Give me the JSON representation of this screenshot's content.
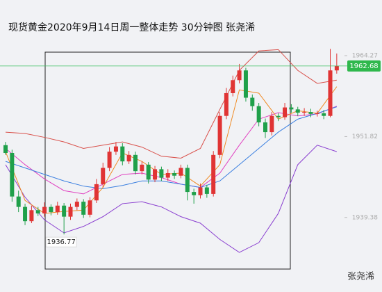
{
  "chart_data": {
    "type": "candlestick",
    "title": "现货黄金2020年9月14日周一整体走势 30分钟图 张尧浠",
    "watermark": "张尧浠",
    "up_color": "#e03434",
    "down_color": "#1fa04a",
    "ylim": [
      1927.91,
      1972.83
    ],
    "yticks": [
      1939.38,
      1951.82,
      1964.27
    ],
    "open": [
      1950.5,
      1949.3,
      1942.6,
      1941.0,
      1938.8,
      1940.5,
      1940.0,
      1941.0,
      1940.2,
      1941.2,
      1939.5,
      1941.0,
      1941.8,
      1939.8,
      1942.0,
      1944.5,
      1947.0,
      1949.5,
      1950.3,
      1948.0,
      1949.0,
      1946.5,
      1947.5,
      1945.2,
      1946.8,
      1945.5,
      1946.2,
      1945.8,
      1947.0,
      1943.3,
      1942.8,
      1944.0,
      1943.0,
      1949.0,
      1955.0,
      1958.5,
      1960.5,
      1962.0,
      1957.8,
      1956.5,
      1954.0,
      1952.5,
      1955.0,
      1954.8,
      1956.3,
      1956.0,
      1955.5,
      1955.6,
      1955.3,
      1955.4,
      1955.0,
      1962.0
    ],
    "high": [
      1951.0,
      1949.8,
      1943.5,
      1941.5,
      1941.2,
      1941.0,
      1941.7,
      1941.4,
      1941.8,
      1941.6,
      1941.5,
      1942.3,
      1942.2,
      1942.5,
      1945.3,
      1947.8,
      1950.2,
      1951.0,
      1950.8,
      1949.6,
      1949.5,
      1948.0,
      1947.9,
      1947.3,
      1947.2,
      1946.8,
      1946.6,
      1947.5,
      1947.5,
      1943.8,
      1944.6,
      1944.4,
      1949.6,
      1955.6,
      1959.3,
      1961.2,
      1963.0,
      1962.4,
      1958.3,
      1957.0,
      1954.6,
      1955.6,
      1955.4,
      1957.0,
      1956.8,
      1956.4,
      1956.2,
      1956.1,
      1955.8,
      1955.9,
      1965.3,
      1964.6
    ],
    "low": [
      1949.0,
      1941.8,
      1940.2,
      1938.2,
      1938.5,
      1939.6,
      1939.5,
      1939.7,
      1939.8,
      1936.77,
      1939.0,
      1940.5,
      1939.3,
      1939.4,
      1941.6,
      1944.0,
      1946.5,
      1949.0,
      1947.4,
      1947.6,
      1946.0,
      1946.0,
      1944.6,
      1944.8,
      1945.0,
      1945.0,
      1945.3,
      1945.4,
      1942.0,
      1941.5,
      1942.3,
      1942.4,
      1942.6,
      1948.5,
      1954.5,
      1958.0,
      1960.0,
      1957.2,
      1955.8,
      1953.4,
      1951.6,
      1952.0,
      1954.2,
      1954.4,
      1955.5,
      1955.0,
      1955.0,
      1954.8,
      1954.9,
      1954.5,
      1954.8,
      1961.5
    ],
    "close": [
      1949.3,
      1942.6,
      1941.0,
      1938.8,
      1940.5,
      1940.0,
      1941.0,
      1940.2,
      1941.2,
      1939.5,
      1941.0,
      1941.8,
      1939.8,
      1942.0,
      1944.5,
      1947.0,
      1949.5,
      1950.3,
      1948.0,
      1949.0,
      1946.5,
      1947.5,
      1945.2,
      1946.8,
      1945.5,
      1946.2,
      1945.8,
      1947.0,
      1943.3,
      1942.8,
      1944.0,
      1943.0,
      1949.0,
      1955.0,
      1958.5,
      1960.5,
      1962.0,
      1957.8,
      1956.5,
      1954.0,
      1952.5,
      1955.0,
      1954.8,
      1956.3,
      1956.0,
      1955.5,
      1955.6,
      1955.3,
      1955.4,
      1955.0,
      1962.0,
      1962.68
    ],
    "lines": [
      {
        "color": "#d9504a",
        "x": [
          0,
          3,
          6,
          9,
          12,
          15,
          18,
          21,
          24,
          27,
          30,
          33,
          36,
          39,
          42,
          45,
          48,
          51
        ],
        "values": [
          1952.5,
          1952.3,
          1951.7,
          1951.0,
          1950.0,
          1950.5,
          1951.0,
          1950.2,
          1948.8,
          1948.5,
          1950.0,
          1956.0,
          1962.0,
          1965.0,
          1965.2,
          1962.0,
          1960.0,
          1960.5
        ]
      },
      {
        "color": "#8a3fd0",
        "x": [
          0,
          3,
          6,
          9,
          12,
          15,
          18,
          21,
          24,
          27,
          30,
          33,
          36,
          39,
          42,
          45,
          48,
          51
        ],
        "values": [
          1947.5,
          1942.5,
          1939.0,
          1937.0,
          1938.0,
          1939.5,
          1941.5,
          1941.8,
          1941.0,
          1939.5,
          1938.5,
          1936.0,
          1934.0,
          1935.5,
          1940.0,
          1947.5,
          1950.5,
          1949.5
        ]
      },
      {
        "color": "#e040c0",
        "x": [
          0,
          3,
          6,
          9,
          12,
          15,
          18,
          21,
          24,
          27,
          30,
          33,
          36,
          39,
          42,
          45,
          48,
          51
        ],
        "values": [
          1950.0,
          1947.5,
          1945.3,
          1943.5,
          1943.0,
          1944.5,
          1946.0,
          1946.2,
          1945.5,
          1944.5,
          1944.0,
          1946.2,
          1950.5,
          1954.5,
          1955.5,
          1955.0,
          1955.3,
          1956.5
        ]
      },
      {
        "color": "#3a7fe0",
        "x": [
          0,
          3,
          6,
          9,
          12,
          15,
          18,
          21,
          24,
          27,
          30,
          33,
          36,
          39,
          42,
          45,
          48,
          51
        ],
        "values": [
          1948.0,
          1947.0,
          1946.0,
          1945.0,
          1944.2,
          1943.8,
          1944.3,
          1945.0,
          1945.0,
          1944.5,
          1944.0,
          1945.0,
          1947.5,
          1950.0,
          1952.5,
          1954.5,
          1955.4,
          1956.4
        ]
      },
      {
        "color": "#f08a24",
        "x": [
          0,
          3,
          6,
          9,
          12,
          15,
          18,
          21,
          24,
          27,
          30,
          33,
          36,
          39,
          42,
          45,
          48,
          51
        ],
        "values": [
          1949.5,
          1942.0,
          1940.0,
          1940.3,
          1940.5,
          1944.0,
          1949.3,
          1948.0,
          1946.0,
          1946.2,
          1944.2,
          1947.5,
          1959.0,
          1958.5,
          1954.5,
          1955.8,
          1955.4,
          1959.5
        ]
      }
    ]
  }
}
